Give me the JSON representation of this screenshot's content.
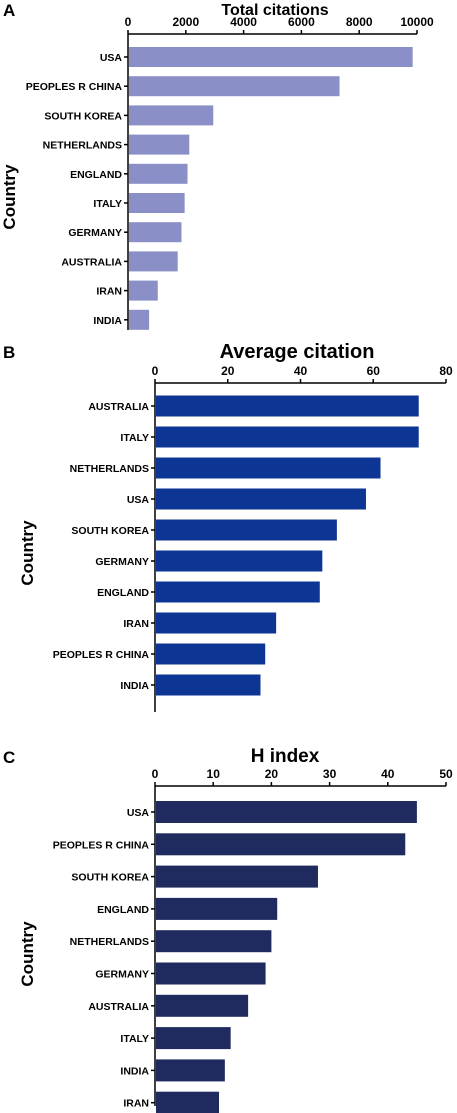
{
  "chart_data": [
    {
      "type": "bar",
      "orientation": "horizontal",
      "panel": "A",
      "title": "Total citations",
      "ylabel": "Country",
      "xlabel": "",
      "xlim": [
        0,
        10000
      ],
      "xticks": [
        "0",
        "2000",
        "4000",
        "6000",
        "8000",
        "10000"
      ],
      "categories": [
        "USA",
        "PEOPLES R CHINA",
        "SOUTH KOREA",
        "NETHERLANDS",
        "ENGLAND",
        "ITALY",
        "GERMANY",
        "AUSTRALIA",
        "IRAN",
        "INDIA"
      ],
      "values": [
        9850,
        7320,
        2950,
        2120,
        2060,
        1960,
        1850,
        1720,
        1030,
        730
      ],
      "color": "#8b8fc8",
      "grid": false,
      "legend": "none"
    },
    {
      "type": "bar",
      "orientation": "horizontal",
      "panel": "B",
      "title": "Average citation",
      "ylabel": "Country",
      "xlabel": "",
      "xlim": [
        0,
        80
      ],
      "xticks": [
        "0",
        "20",
        "40",
        "60",
        "80"
      ],
      "categories": [
        "AUSTRALIA",
        "ITALY",
        "NETHERLANDS",
        "USA",
        "SOUTH KOREA",
        "GERMANY",
        "ENGLAND",
        "IRAN",
        "PEOPLES R CHINA",
        "INDIA"
      ],
      "values": [
        72.5,
        72.5,
        62,
        58,
        50,
        46,
        45.3,
        33.3,
        30.3,
        29
      ],
      "color": "#0d3593",
      "grid": false,
      "legend": "none"
    },
    {
      "type": "bar",
      "orientation": "horizontal",
      "panel": "C",
      "title": "H index",
      "ylabel": "Country",
      "xlabel": "",
      "xlim": [
        0,
        50
      ],
      "xticks": [
        "0",
        "10",
        "20",
        "30",
        "40",
        "50"
      ],
      "categories": [
        "USA",
        "PEOPLES R CHINA",
        "SOUTH KOREA",
        "ENGLAND",
        "NETHERLANDS",
        "GERMANY",
        "AUSTRALIA",
        "ITALY",
        "INDIA",
        "IRAN"
      ],
      "values": [
        45,
        43,
        28,
        21,
        20,
        19,
        16,
        13,
        12,
        11
      ],
      "color": "#1f2b5e",
      "grid": false,
      "legend": "none"
    }
  ]
}
